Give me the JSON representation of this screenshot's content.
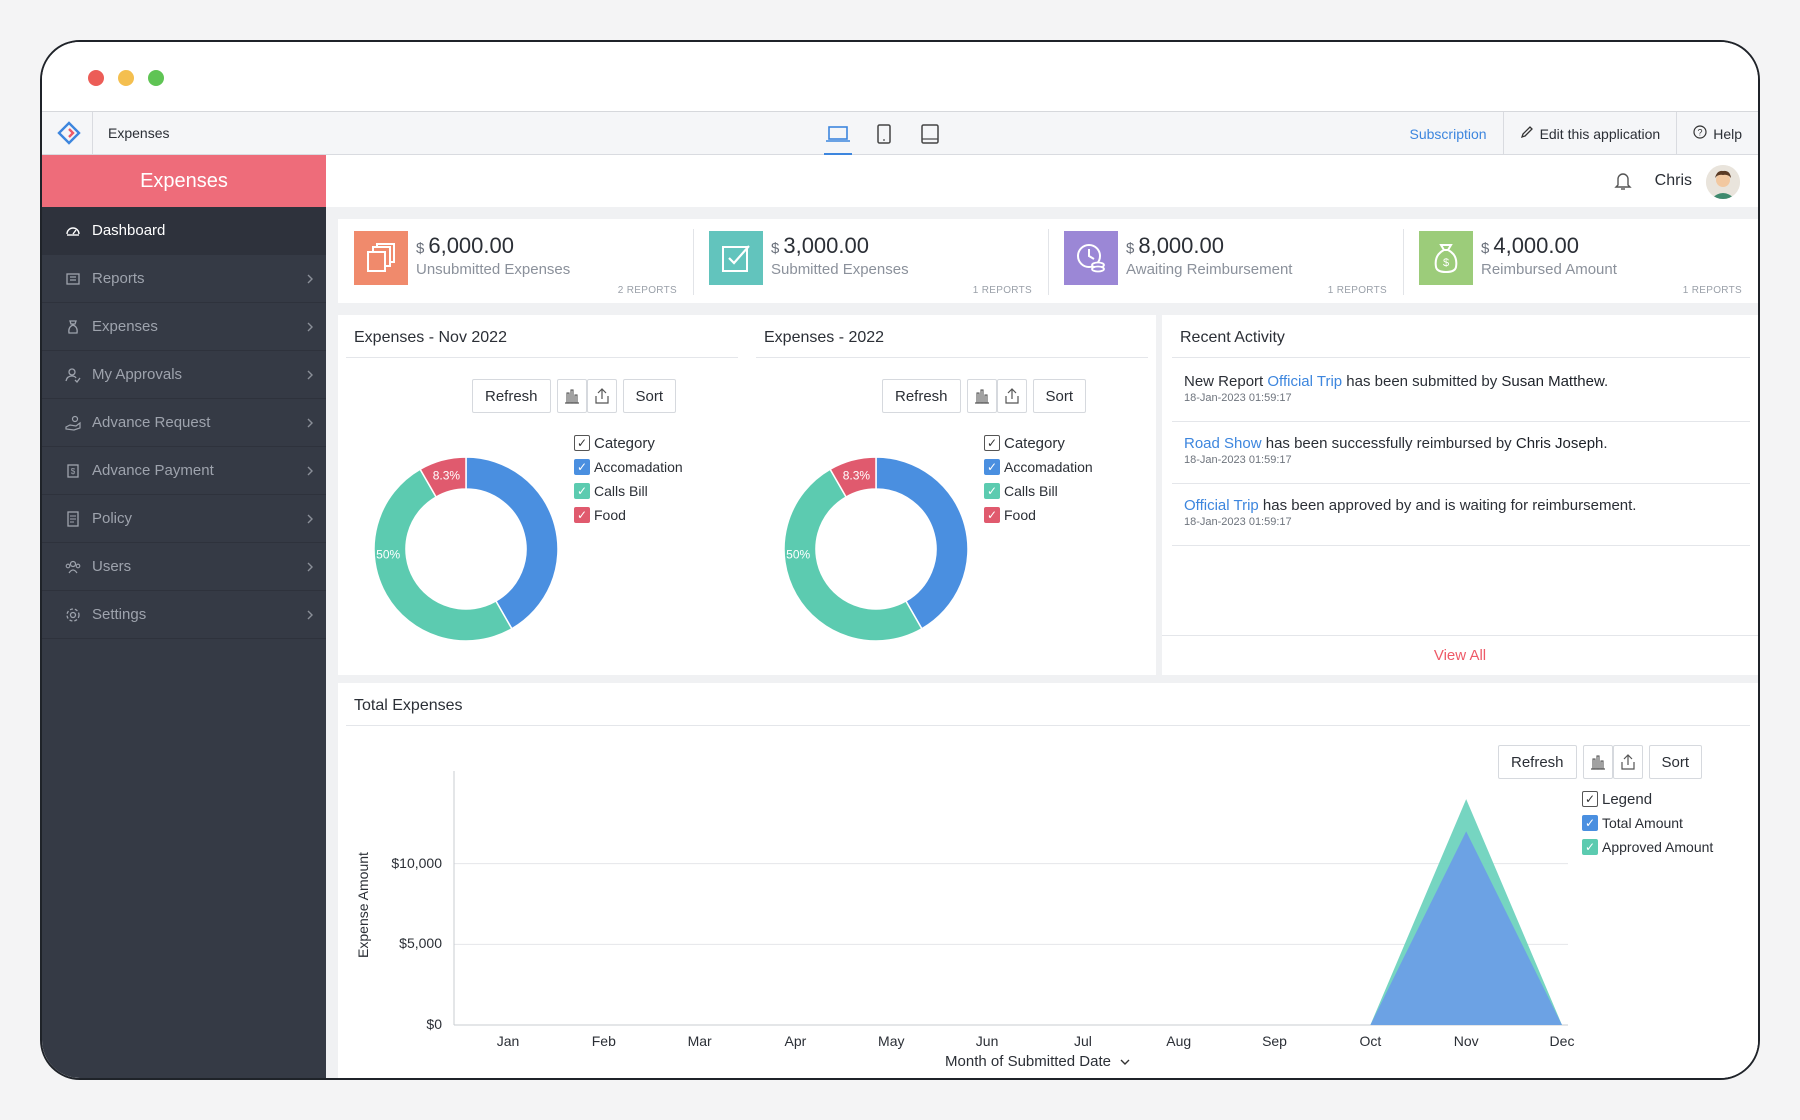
{
  "app": {
    "title": "Expenses",
    "subscription": "Subscription",
    "edit": "Edit this application",
    "help": "Help"
  },
  "sidebar": {
    "header": "Expenses",
    "items": [
      {
        "label": "Dashboard",
        "icon": "dashboard-icon"
      },
      {
        "label": "Reports",
        "icon": "reports-icon"
      },
      {
        "label": "Expenses",
        "icon": "expenses-icon"
      },
      {
        "label": "My Approvals",
        "icon": "approvals-icon"
      },
      {
        "label": "Advance Request",
        "icon": "advance-request-icon"
      },
      {
        "label": "Advance Payment",
        "icon": "advance-payment-icon"
      },
      {
        "label": "Policy",
        "icon": "policy-icon"
      },
      {
        "label": "Users",
        "icon": "users-icon"
      },
      {
        "label": "Settings",
        "icon": "settings-icon"
      }
    ]
  },
  "user": {
    "name": "Chris"
  },
  "cards": [
    {
      "currency": "$",
      "amount": "6,000.00",
      "label": "Unsubmitted Expenses",
      "reports": "2 REPORTS",
      "color": "#f08a6c"
    },
    {
      "currency": "$",
      "amount": "3,000.00",
      "label": "Submitted Expenses",
      "reports": "1 REPORTS",
      "color": "#62c4bd"
    },
    {
      "currency": "$",
      "amount": "8,000.00",
      "label": "Awaiting Reimbursement",
      "reports": "1 REPORTS",
      "color": "#9b87d6"
    },
    {
      "currency": "$",
      "amount": "4,000.00",
      "label": "Reimbursed Amount",
      "reports": "1 REPORTS",
      "color": "#9ccc7a"
    }
  ],
  "toolbar": {
    "refresh": "Refresh",
    "sort": "Sort"
  },
  "pies": [
    {
      "title": "Expenses - Nov 2022"
    },
    {
      "title": "Expenses - 2022"
    }
  ],
  "pie_legend": {
    "head": "Category",
    "items": [
      "Accomadation",
      "Calls Bill",
      "Food"
    ]
  },
  "activity": {
    "title": "Recent Activity",
    "items": [
      {
        "pre": "New Report ",
        "link": "Official Trip",
        "mid": " has been submitted by ",
        "bold": "Susan Matthew",
        "post": ".",
        "ts": "18-Jan-2023 01:59:17"
      },
      {
        "pre": "",
        "link": "Road Show",
        "mid": " has been successfully reimbursed by ",
        "bold": "Chris Joseph",
        "post": ".",
        "ts": "18-Jan-2023 01:59:17"
      },
      {
        "pre": "",
        "link": "Official Trip",
        "mid": " has been approved by and is waiting for reimbursement.",
        "bold": "",
        "post": "",
        "ts": "18-Jan-2023 01:59:17"
      }
    ],
    "view_all": "View All"
  },
  "total": {
    "title": "Total Expenses",
    "legend_head": "Legend",
    "xlabel": "Month of Submitted Date",
    "ylabel": "Expense Amount"
  },
  "chart_data": [
    {
      "type": "pie",
      "title": "Expenses - Nov 2022",
      "categories": [
        "Accomadation",
        "Calls Bill",
        "Food"
      ],
      "values": [
        41.7,
        50,
        8.3
      ],
      "labels": [
        "",
        "50%",
        "8.3%"
      ],
      "colors": [
        "#4a8fe0",
        "#5ccbb0",
        "#e05a6e"
      ]
    },
    {
      "type": "pie",
      "title": "Expenses - 2022",
      "categories": [
        "Accomadation",
        "Calls Bill",
        "Food"
      ],
      "values": [
        41.7,
        50,
        8.3
      ],
      "labels": [
        "",
        "50%",
        "8.3%"
      ],
      "colors": [
        "#4a8fe0",
        "#5ccbb0",
        "#e05a6e"
      ]
    },
    {
      "type": "area",
      "title": "Total Expenses",
      "xlabel": "Month of Submitted Date",
      "ylabel": "Expense Amount",
      "categories": [
        "Jan",
        "Feb",
        "Mar",
        "Apr",
        "May",
        "Jun",
        "Jul",
        "Aug",
        "Sep",
        "Oct",
        "Nov",
        "Dec"
      ],
      "series": [
        {
          "name": "Total Amount",
          "color": "#6b9fe6",
          "values": [
            0,
            0,
            0,
            0,
            0,
            0,
            0,
            0,
            0,
            0,
            12000,
            0
          ]
        },
        {
          "name": "Approved Amount",
          "color": "#6fd3be",
          "values": [
            0,
            0,
            0,
            0,
            0,
            0,
            0,
            0,
            0,
            0,
            14000,
            0
          ]
        }
      ],
      "yticks": [
        "$0",
        "$5,000",
        "$10,000"
      ],
      "ytick_values": [
        0,
        5000,
        10000
      ],
      "ylim": [
        0,
        15000
      ],
      "grid": true,
      "legend": "right"
    }
  ]
}
